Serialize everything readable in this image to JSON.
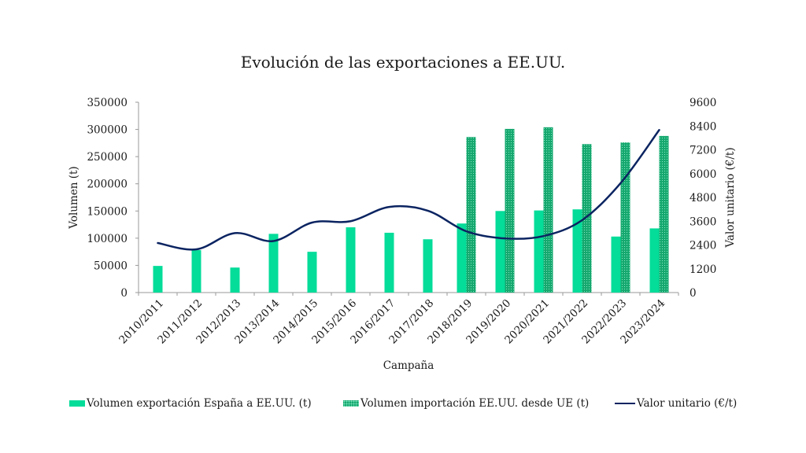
{
  "chart_data": {
    "type": "bar+line",
    "title": "Evolución de las exportaciones a EE.UU.",
    "xlabel": "Campaña",
    "ylabel": "Volumen (t)",
    "y2label": "Valor unitario (€/t)",
    "ylim": [
      0,
      350000
    ],
    "y2lim": [
      0,
      9600
    ],
    "yticks": [
      "0",
      "50000",
      "100000",
      "150000",
      "200000",
      "250000",
      "300000",
      "350000"
    ],
    "y2ticks": [
      "0",
      "1200",
      "2400",
      "3600",
      "4800",
      "6000",
      "7200",
      "8400",
      "9600"
    ],
    "categories": [
      "2010/2011",
      "2011/2012",
      "2012/2013",
      "2013/2014",
      "2014/2015",
      "2015/2016",
      "2016/2017",
      "2017/2018",
      "2018/2019",
      "2019/2020",
      "2020/2021",
      "2021/2022",
      "2022/2023",
      "2023/2024"
    ],
    "series": [
      {
        "name": "Volumen exportación España a EE.UU. (t)",
        "type": "bar",
        "axis": "left",
        "color": "#04dc99",
        "values": [
          49000,
          78000,
          46000,
          108000,
          75000,
          120000,
          110000,
          98000,
          127000,
          150000,
          151000,
          153000,
          103000,
          118000
        ]
      },
      {
        "name": "Volumen importación EE.UU. desde UE (t)",
        "type": "bar",
        "axis": "left",
        "color": "#16a86f",
        "pattern": "dotted",
        "values": [
          null,
          null,
          null,
          null,
          null,
          null,
          null,
          null,
          286000,
          301000,
          304000,
          273000,
          276000,
          288000
        ]
      },
      {
        "name": "Valor unitario (€/t)",
        "type": "line",
        "axis": "right",
        "color": "#0b2461",
        "values": [
          2500,
          2180,
          3000,
          2600,
          3530,
          3600,
          4320,
          4130,
          3090,
          2730,
          2850,
          3650,
          5520,
          8200
        ]
      }
    ],
    "legend_position": "bottom",
    "grid": false
  }
}
